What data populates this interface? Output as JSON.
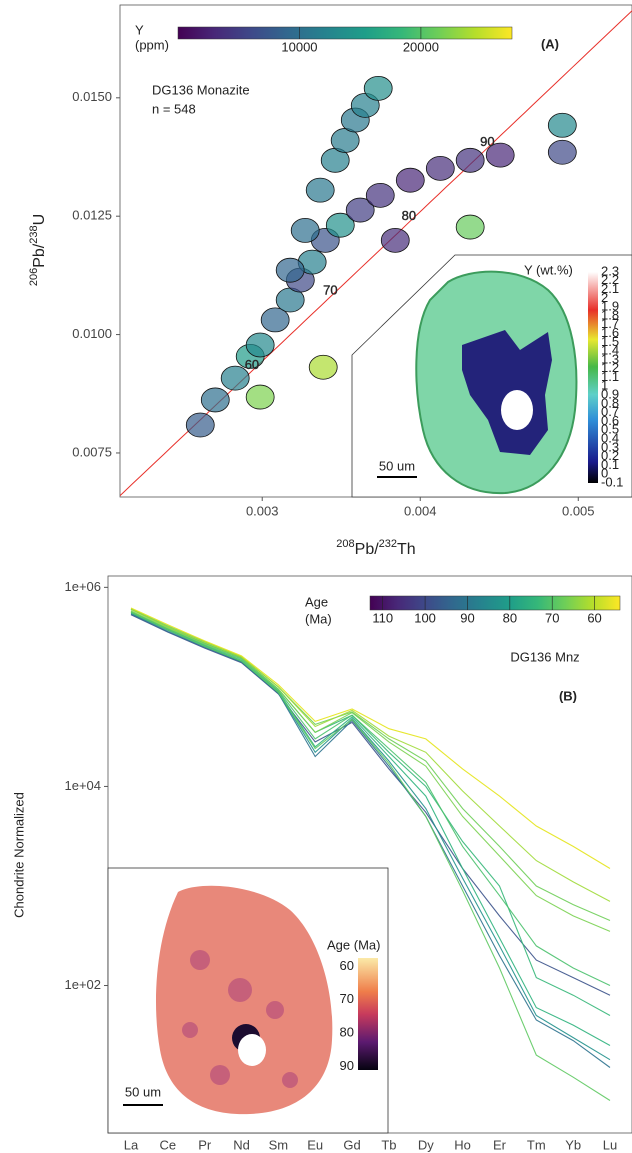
{
  "chart_data": [
    {
      "type": "scatter",
      "panel_label": "(A)",
      "annotation": [
        "DG136 Monazite",
        "n =  548"
      ],
      "x_label": [
        "208",
        "Pb/",
        "232",
        "Th"
      ],
      "y_label": [
        "206",
        "Pb/",
        "238",
        "U"
      ],
      "xlim": [
        0.0021,
        0.00534
      ],
      "ylim": [
        0.00657,
        0.01696
      ],
      "xticks": [
        0.003,
        0.004,
        0.005
      ],
      "yticks": [
        {
          "value": 0.0075,
          "label": "0.0075"
        },
        {
          "value": 0.01,
          "label": "0.0100"
        },
        {
          "value": 0.0125,
          "label": "0.0125"
        },
        {
          "value": 0.015,
          "label": "0.0150"
        }
      ],
      "x": [
        0.002608,
        0.002703,
        0.002829,
        0.002924,
        0.002987,
        0.003082,
        0.003177,
        0.003241,
        0.003316,
        0.003399,
        0.003494,
        0.00362,
        0.003747,
        0.003937,
        0.004127,
        0.004316,
        0.004506,
        0.003177,
        0.003272,
        0.003367,
        0.003462,
        0.003525,
        0.003589,
        0.003652,
        0.003734,
        0.004899,
        0.004899,
        0.003386,
        0.004316,
        0.002987,
        0.003842
      ],
      "values": [
        0.00809,
        0.00862,
        0.00908,
        0.00954,
        0.00978,
        0.01031,
        0.01073,
        0.01115,
        0.01153,
        0.01199,
        0.01231,
        0.01263,
        0.01294,
        0.01326,
        0.01351,
        0.01368,
        0.01379,
        0.01136,
        0.0122,
        0.01305,
        0.01368,
        0.0141,
        0.01453,
        0.01484,
        0.0152,
        0.01442,
        0.01385,
        0.00931,
        0.01227,
        0.00868,
        0.01199
      ],
      "c": [
        8000,
        10000,
        12000,
        15000,
        13000,
        9000,
        11000,
        6000,
        12000,
        7000,
        14000,
        5000,
        4000,
        3000,
        3500,
        4000,
        3000,
        9000,
        10000,
        11000,
        12000,
        11500,
        11000,
        12000,
        13500,
        13000,
        6000,
        24000,
        21000,
        22000,
        3500
      ],
      "colorbar": {
        "title": "Y",
        "unit": "(ppm)",
        "lim": [
          0,
          27500
        ],
        "ticks": [
          10000,
          20000
        ]
      },
      "concordia": {
        "color": "#e8302a",
        "ages": [
          60,
          70,
          80,
          90
        ]
      },
      "inset": {
        "title": "Y (wt.%)",
        "ticks": [
          -0.1,
          0,
          0.1,
          0.2,
          0.3,
          0.4,
          0.5,
          0.6,
          0.7,
          0.8,
          0.9,
          1,
          1.1,
          1.2,
          1.3,
          1.4,
          1.5,
          1.6,
          1.7,
          1.8,
          1.9,
          2,
          2.1,
          2.2,
          2.3
        ],
        "scale_bar": "50 um"
      }
    },
    {
      "type": "line",
      "panel_label": "(B)",
      "annotation": "DG136 Mnz",
      "y_label": "Chondrite Normalized",
      "log_scale": true,
      "categories": [
        "La",
        "Ce",
        "Pr",
        "Nd",
        "Sm",
        "Eu",
        "Gd",
        "Tb",
        "Dy",
        "Ho",
        "Er",
        "Tm",
        "Yb",
        "Lu"
      ],
      "ylim": [
        3.3,
        1300000
      ],
      "yticks": [
        {
          "value": 100,
          "label": "1e+02"
        },
        {
          "value": 10000,
          "label": "1e+04"
        },
        {
          "value": 1000000,
          "label": "1e+06"
        }
      ],
      "series": [
        {
          "color": "#3b528b",
          "values": [
            530000,
            355000,
            245000,
            175000,
            85000,
            28000,
            44000,
            15000,
            5500,
            1500,
            500,
            180,
            120,
            80
          ]
        },
        {
          "color": "#2c728e",
          "values": [
            540000,
            360000,
            250000,
            178000,
            86000,
            20000,
            46000,
            16000,
            5000,
            1000,
            200,
            45,
            28,
            15
          ]
        },
        {
          "color": "#21918c",
          "values": [
            550000,
            370000,
            255000,
            180000,
            88000,
            22000,
            48000,
            18000,
            6000,
            1200,
            250,
            50,
            30,
            18
          ]
        },
        {
          "color": "#2db27d",
          "values": [
            560000,
            380000,
            260000,
            185000,
            90000,
            25000,
            50000,
            20000,
            8000,
            1500,
            300,
            60,
            40,
            25
          ]
        },
        {
          "color": "#5ec962",
          "values": [
            560000,
            375000,
            255000,
            182000,
            88000,
            24000,
            47000,
            17000,
            5000,
            900,
            150,
            20,
            12,
            7
          ]
        },
        {
          "color": "#35b779",
          "values": [
            600000,
            400000,
            275000,
            195000,
            95000,
            35000,
            52000,
            22000,
            10000,
            2800,
            1000,
            120,
            80,
            50
          ]
        },
        {
          "color": "#4ac16d",
          "values": [
            570000,
            385000,
            265000,
            190000,
            92000,
            30000,
            52000,
            24000,
            11000,
            2500,
            800,
            250,
            150,
            100
          ]
        },
        {
          "color": "#7ad151",
          "values": [
            580000,
            390000,
            270000,
            195000,
            95000,
            35000,
            55000,
            28000,
            16000,
            5000,
            2000,
            800,
            500,
            350
          ]
        },
        {
          "color": "#6ece58",
          "values": [
            610000,
            410000,
            285000,
            200000,
            100000,
            42000,
            56000,
            30000,
            18000,
            6000,
            2500,
            1000,
            650,
            450
          ]
        },
        {
          "color": "#a0da39",
          "values": [
            600000,
            400000,
            280000,
            200000,
            100000,
            40000,
            58000,
            32000,
            22000,
            9000,
            4000,
            1800,
            1100,
            700
          ]
        },
        {
          "color": "#e4e419",
          "values": [
            620000,
            420000,
            290000,
            205000,
            105000,
            45000,
            60000,
            38000,
            30000,
            15000,
            8000,
            4000,
            2500,
            1500
          ]
        }
      ],
      "colorbar": {
        "title": "Age",
        "unit": "(Ma)",
        "lim": [
          113,
          54
        ],
        "ticks": [
          110,
          100,
          90,
          80,
          70,
          60
        ]
      },
      "inset": {
        "title": "Age (Ma)",
        "lim": [
          57.5,
          91
        ],
        "ticks": [
          60,
          70,
          80,
          90
        ],
        "scale_bar": "50 um"
      }
    }
  ]
}
